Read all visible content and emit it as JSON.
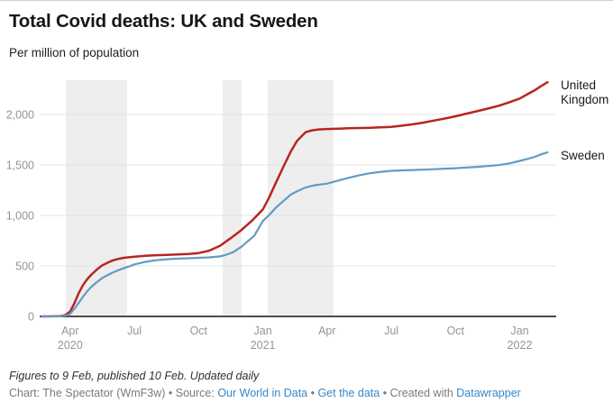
{
  "header": {
    "title": "Total Covid deaths: UK and Sweden",
    "subtitle": "Per million of population"
  },
  "chart_data": {
    "type": "line",
    "title": "Total Covid deaths: UK and Sweden",
    "subtitle": "Per million of population",
    "x_unit": "months since Jan 2020 (0 = Jan 2020)",
    "xlim": [
      1.6,
      25.8
    ],
    "ylim": [
      0,
      2340
    ],
    "grid": "horizontal",
    "legend_position": "direct-labels-right",
    "band_color": "#eeeeee",
    "highlight_ranges": [
      [
        2.8,
        5.66
      ],
      [
        10.12,
        11.01
      ],
      [
        12.23,
        15.3
      ]
    ],
    "x_ticks": [
      {
        "m": 3,
        "label": "Apr",
        "year": "2020"
      },
      {
        "m": 6,
        "label": "Jul"
      },
      {
        "m": 9,
        "label": "Oct"
      },
      {
        "m": 12,
        "label": "Jan",
        "year": "2021"
      },
      {
        "m": 15,
        "label": "Apr"
      },
      {
        "m": 18,
        "label": "Jul"
      },
      {
        "m": 21,
        "label": "Oct"
      },
      {
        "m": 24,
        "label": "Jan",
        "year": "2022"
      }
    ],
    "y_ticks": [
      {
        "v": 0,
        "label": "0"
      },
      {
        "v": 500,
        "label": "500"
      },
      {
        "v": 1000,
        "label": "1,000"
      },
      {
        "v": 1500,
        "label": "1,500"
      },
      {
        "v": 2000,
        "label": "2,000"
      }
    ],
    "series": [
      {
        "name": "United Kingdom",
        "label_lines": [
          "United",
          "Kingdom"
        ],
        "color": "#b82520",
        "stroke_width": 2.5,
        "points": [
          [
            1.7,
            0
          ],
          [
            2.5,
            2
          ],
          [
            2.75,
            12
          ],
          [
            3.0,
            48
          ],
          [
            3.2,
            130
          ],
          [
            3.4,
            230
          ],
          [
            3.6,
            310
          ],
          [
            3.8,
            370
          ],
          [
            4.0,
            415
          ],
          [
            4.25,
            465
          ],
          [
            4.5,
            505
          ],
          [
            4.75,
            532
          ],
          [
            5.0,
            555
          ],
          [
            5.25,
            570
          ],
          [
            5.5,
            580
          ],
          [
            6.0,
            592
          ],
          [
            6.5,
            600
          ],
          [
            7.0,
            606
          ],
          [
            7.5,
            610
          ],
          [
            8.0,
            614
          ],
          [
            8.5,
            619
          ],
          [
            9.0,
            628
          ],
          [
            9.5,
            652
          ],
          [
            10.0,
            700
          ],
          [
            10.5,
            775
          ],
          [
            11.0,
            855
          ],
          [
            11.5,
            950
          ],
          [
            12.0,
            1060
          ],
          [
            12.3,
            1180
          ],
          [
            12.6,
            1320
          ],
          [
            13.0,
            1500
          ],
          [
            13.3,
            1630
          ],
          [
            13.6,
            1740
          ],
          [
            14.0,
            1825
          ],
          [
            14.3,
            1843
          ],
          [
            14.6,
            1852
          ],
          [
            15.0,
            1856
          ],
          [
            15.5,
            1860
          ],
          [
            16.0,
            1863
          ],
          [
            16.5,
            1866
          ],
          [
            17.0,
            1869
          ],
          [
            17.5,
            1873
          ],
          [
            18.0,
            1878
          ],
          [
            18.5,
            1889
          ],
          [
            19.0,
            1903
          ],
          [
            19.5,
            1920
          ],
          [
            20.0,
            1940
          ],
          [
            20.5,
            1960
          ],
          [
            21.0,
            1982
          ],
          [
            21.5,
            2008
          ],
          [
            22.0,
            2032
          ],
          [
            22.5,
            2058
          ],
          [
            23.0,
            2086
          ],
          [
            23.5,
            2120
          ],
          [
            24.0,
            2158
          ],
          [
            24.4,
            2205
          ],
          [
            24.7,
            2240
          ],
          [
            25.0,
            2282
          ],
          [
            25.3,
            2320
          ]
        ]
      },
      {
        "name": "Sweden",
        "label_lines": [
          "Sweden"
        ],
        "color": "#639bc3",
        "stroke_width": 2.2,
        "points": [
          [
            1.7,
            0
          ],
          [
            2.6,
            2
          ],
          [
            2.9,
            15
          ],
          [
            3.0,
            25
          ],
          [
            3.2,
            75
          ],
          [
            3.4,
            135
          ],
          [
            3.6,
            195
          ],
          [
            3.8,
            250
          ],
          [
            4.0,
            295
          ],
          [
            4.25,
            340
          ],
          [
            4.5,
            380
          ],
          [
            4.75,
            410
          ],
          [
            5.0,
            435
          ],
          [
            5.25,
            458
          ],
          [
            5.5,
            477
          ],
          [
            5.75,
            495
          ],
          [
            6.0,
            515
          ],
          [
            6.25,
            528
          ],
          [
            6.5,
            540
          ],
          [
            7.0,
            556
          ],
          [
            7.5,
            566
          ],
          [
            8.0,
            572
          ],
          [
            8.5,
            576
          ],
          [
            9.0,
            580
          ],
          [
            9.5,
            585
          ],
          [
            10.0,
            595
          ],
          [
            10.3,
            612
          ],
          [
            10.6,
            635
          ],
          [
            11.0,
            690
          ],
          [
            11.3,
            745
          ],
          [
            11.6,
            800
          ],
          [
            12.0,
            945
          ],
          [
            12.3,
            1005
          ],
          [
            12.6,
            1075
          ],
          [
            13.0,
            1150
          ],
          [
            13.3,
            1205
          ],
          [
            13.6,
            1240
          ],
          [
            14.0,
            1278
          ],
          [
            14.4,
            1298
          ],
          [
            15.0,
            1315
          ],
          [
            15.5,
            1345
          ],
          [
            16.0,
            1372
          ],
          [
            16.5,
            1398
          ],
          [
            17.0,
            1418
          ],
          [
            17.5,
            1432
          ],
          [
            18.0,
            1442
          ],
          [
            18.5,
            1446
          ],
          [
            19.0,
            1450
          ],
          [
            19.5,
            1454
          ],
          [
            20.0,
            1458
          ],
          [
            20.5,
            1463
          ],
          [
            21.0,
            1468
          ],
          [
            21.5,
            1474
          ],
          [
            22.0,
            1481
          ],
          [
            22.5,
            1489
          ],
          [
            23.0,
            1498
          ],
          [
            23.5,
            1515
          ],
          [
            24.0,
            1540
          ],
          [
            24.4,
            1562
          ],
          [
            24.7,
            1580
          ],
          [
            25.0,
            1605
          ],
          [
            25.3,
            1625
          ]
        ]
      }
    ]
  },
  "footer": {
    "notes": "Figures to 9 Feb, published 10 Feb. Updated daily",
    "link_color": "#3a87c4",
    "byline_segments": [
      {
        "text": "Chart: The Spectator (WmF3w) • Source: ",
        "link": false
      },
      {
        "text": "Our World in Data",
        "link": true,
        "name": "source-link"
      },
      {
        "text": " • ",
        "link": false
      },
      {
        "text": "Get the data",
        "link": true,
        "name": "get-data-link"
      },
      {
        "text": " • ",
        "link": false
      },
      {
        "text": "Created with ",
        "link": false
      },
      {
        "text": "Datawrapper",
        "link": true,
        "name": "datawrapper-link"
      }
    ]
  }
}
